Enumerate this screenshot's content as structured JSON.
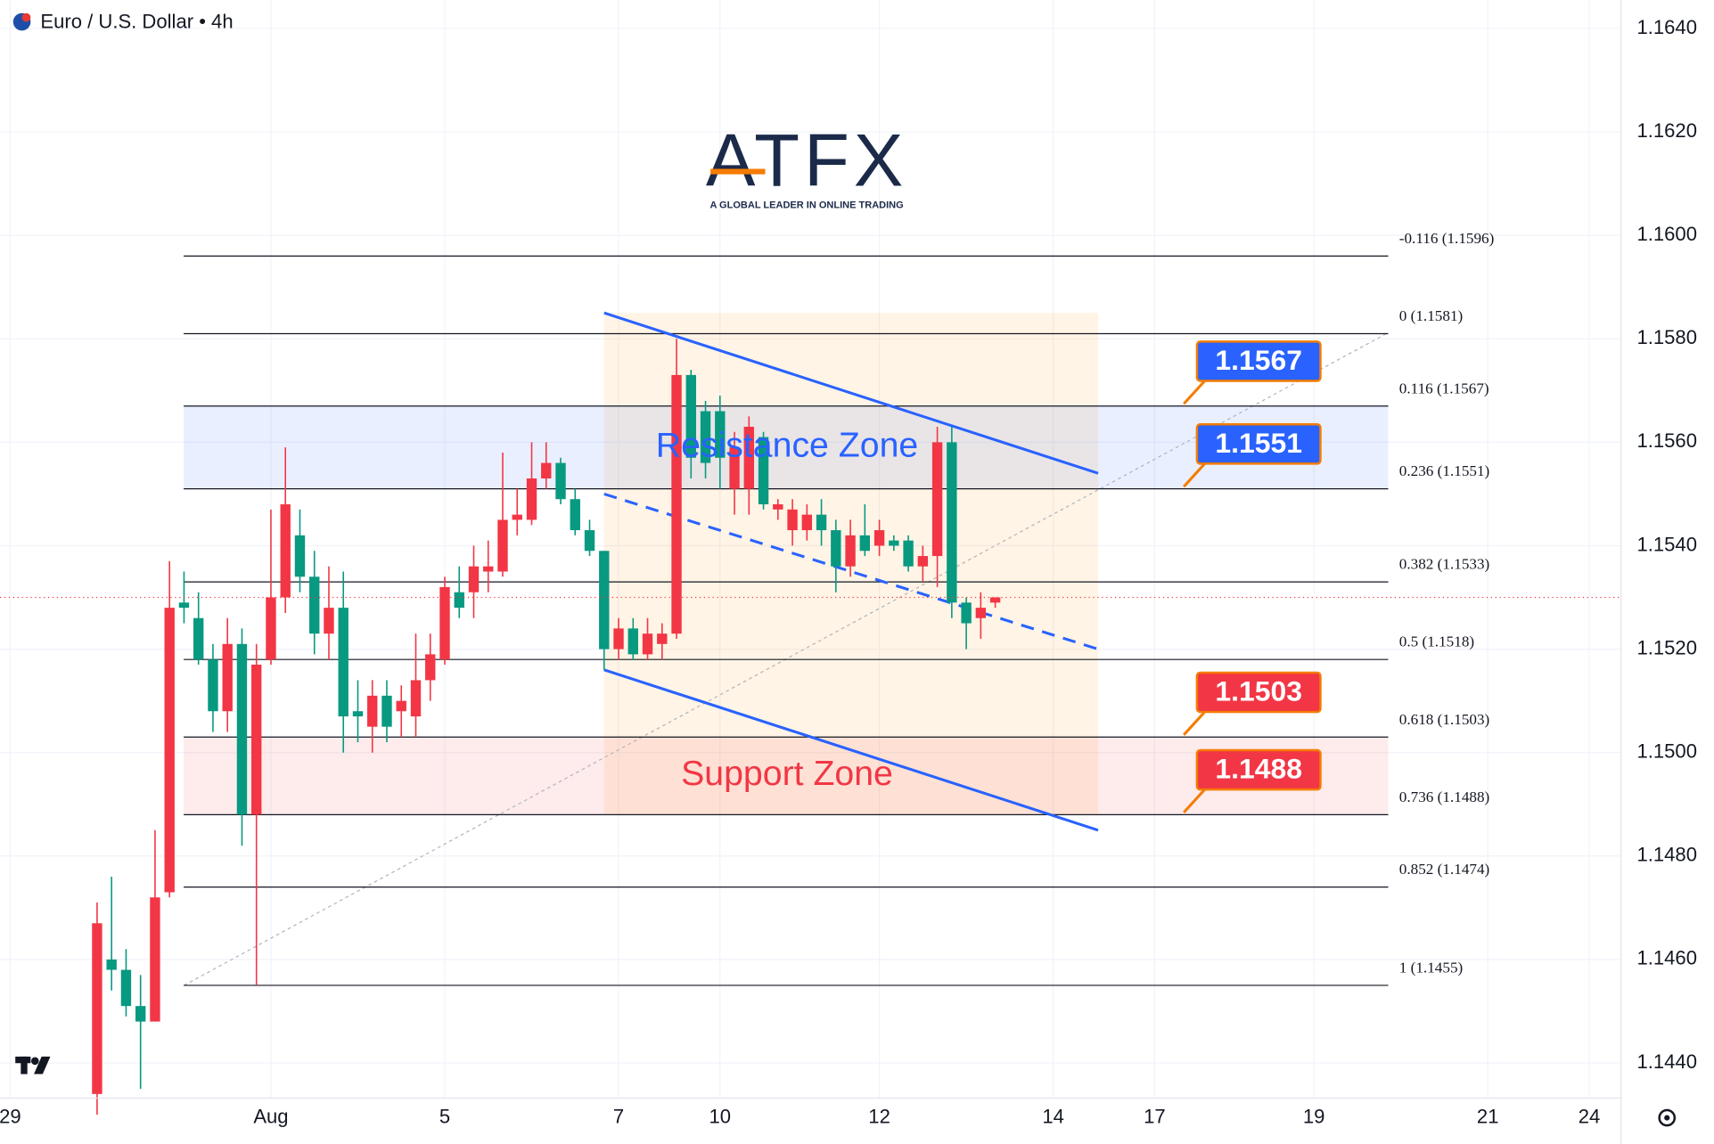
{
  "chart_data": {
    "type": "candlestick",
    "title": "Euro / U.S. Dollar • 4h",
    "logo": {
      "text": "ATFX",
      "tagline": "A GLOBAL LEADER IN ONLINE TRADING"
    },
    "up_color": "#f23645",
    "down_color": "#089981",
    "x": [
      0,
      1,
      2,
      3,
      4,
      5,
      6,
      7,
      8,
      9,
      10,
      11,
      12,
      13,
      14,
      15,
      16,
      17,
      18,
      19,
      20,
      21,
      22,
      23,
      24,
      25,
      26,
      27,
      28,
      29,
      30,
      31,
      32,
      33,
      34,
      35,
      36,
      37,
      38,
      39,
      40,
      41,
      42,
      43,
      44,
      45,
      46,
      47,
      48,
      49,
      50,
      51,
      52,
      53,
      54,
      55,
      56,
      57,
      58,
      59,
      60,
      61,
      62
    ],
    "ohlc": [
      [
        1.1434,
        1.1471,
        1.143,
        1.1467
      ],
      [
        1.146,
        1.1476,
        1.1454,
        1.1458
      ],
      [
        1.1458,
        1.1462,
        1.1449,
        1.1451
      ],
      [
        1.1451,
        1.1457,
        1.1435,
        1.1448
      ],
      [
        1.1448,
        1.1485,
        1.1448,
        1.1472
      ],
      [
        1.1473,
        1.1537,
        1.1472,
        1.1528
      ],
      [
        1.1529,
        1.1535,
        1.1525,
        1.1528
      ],
      [
        1.1526,
        1.1531,
        1.1517,
        1.1518
      ],
      [
        1.1518,
        1.1521,
        1.1504,
        1.1508
      ],
      [
        1.1508,
        1.1526,
        1.1504,
        1.1521
      ],
      [
        1.1521,
        1.1524,
        1.1482,
        1.1488
      ],
      [
        1.1488,
        1.1521,
        1.1455,
        1.1517
      ],
      [
        1.1518,
        1.1547,
        1.1517,
        1.153
      ],
      [
        1.153,
        1.1559,
        1.1527,
        1.1548
      ],
      [
        1.1542,
        1.1547,
        1.1531,
        1.1534
      ],
      [
        1.1534,
        1.1539,
        1.1519,
        1.1523
      ],
      [
        1.1523,
        1.1536,
        1.1518,
        1.1528
      ],
      [
        1.1528,
        1.1535,
        1.15,
        1.1507
      ],
      [
        1.1508,
        1.1514,
        1.1502,
        1.1507
      ],
      [
        1.1505,
        1.1514,
        1.15,
        1.1511
      ],
      [
        1.1511,
        1.1514,
        1.1502,
        1.1505
      ],
      [
        1.1508,
        1.1513,
        1.1503,
        1.151
      ],
      [
        1.1507,
        1.1523,
        1.1503,
        1.1514
      ],
      [
        1.1514,
        1.1523,
        1.151,
        1.1519
      ],
      [
        1.1518,
        1.1534,
        1.1517,
        1.1532
      ],
      [
        1.1531,
        1.1536,
        1.1526,
        1.1528
      ],
      [
        1.1531,
        1.154,
        1.1526,
        1.1536
      ],
      [
        1.1535,
        1.1541,
        1.1531,
        1.1536
      ],
      [
        1.1535,
        1.1558,
        1.1534,
        1.1545
      ],
      [
        1.1545,
        1.1551,
        1.1542,
        1.1546
      ],
      [
        1.1545,
        1.156,
        1.1544,
        1.1553
      ],
      [
        1.1553,
        1.156,
        1.1551,
        1.1556
      ],
      [
        1.1556,
        1.1557,
        1.1548,
        1.1549
      ],
      [
        1.1549,
        1.1551,
        1.1542,
        1.1543
      ],
      [
        1.1543,
        1.1545,
        1.1538,
        1.1539
      ],
      [
        1.1539,
        1.1539,
        1.1516,
        1.152
      ],
      [
        1.152,
        1.1526,
        1.1518,
        1.1524
      ],
      [
        1.1524,
        1.1526,
        1.1518,
        1.1519
      ],
      [
        1.1519,
        1.1526,
        1.1518,
        1.1523
      ],
      [
        1.1521,
        1.1525,
        1.1518,
        1.1523
      ],
      [
        1.1523,
        1.158,
        1.1522,
        1.1573
      ],
      [
        1.1573,
        1.1574,
        1.1553,
        1.1557
      ],
      [
        1.1566,
        1.1568,
        1.1553,
        1.1556
      ],
      [
        1.1566,
        1.1569,
        1.1551,
        1.1557
      ],
      [
        1.1551,
        1.1562,
        1.1546,
        1.1559
      ],
      [
        1.1551,
        1.1565,
        1.1546,
        1.1563
      ],
      [
        1.1561,
        1.1562,
        1.1547,
        1.1548
      ],
      [
        1.1547,
        1.1549,
        1.1545,
        1.1548
      ],
      [
        1.1543,
        1.1549,
        1.154,
        1.1547
      ],
      [
        1.1543,
        1.1548,
        1.1541,
        1.1546
      ],
      [
        1.1546,
        1.1549,
        1.154,
        1.1543
      ],
      [
        1.1543,
        1.1545,
        1.1531,
        1.1536
      ],
      [
        1.1536,
        1.1545,
        1.1534,
        1.1542
      ],
      [
        1.1542,
        1.1548,
        1.1538,
        1.1539
      ],
      [
        1.154,
        1.1545,
        1.1538,
        1.1543
      ],
      [
        1.1541,
        1.1542,
        1.1539,
        1.154
      ],
      [
        1.1541,
        1.1542,
        1.1535,
        1.1536
      ],
      [
        1.1536,
        1.154,
        1.1533,
        1.1538
      ],
      [
        1.1538,
        1.1563,
        1.1532,
        1.156
      ],
      [
        1.156,
        1.1563,
        1.1526,
        1.1529
      ],
      [
        1.1529,
        1.153,
        1.152,
        1.1525
      ],
      [
        1.1526,
        1.1531,
        1.1522,
        1.1528
      ],
      [
        1.1529,
        1.153,
        1.1528,
        1.153
      ]
    ],
    "xlim": [
      -6.7,
      105.2
    ],
    "xticks": [
      {
        "value": -6,
        "label": "29"
      },
      {
        "value": 12,
        "label": "Aug"
      },
      {
        "value": 24,
        "label": "5"
      },
      {
        "value": 36,
        "label": "7"
      },
      {
        "value": 43,
        "label": "10"
      },
      {
        "value": 54,
        "label": "12"
      },
      {
        "value": 66,
        "label": "14"
      },
      {
        "value": 73,
        "label": "17"
      },
      {
        "value": 84,
        "label": "19"
      },
      {
        "value": 96,
        "label": "21"
      },
      {
        "value": 103,
        "label": "24"
      }
    ],
    "ylim": [
      1.14332,
      1.16455
    ],
    "yticks": [
      {
        "value": 1.144,
        "label": "1.1440"
      },
      {
        "value": 1.146,
        "label": "1.1460"
      },
      {
        "value": 1.148,
        "label": "1.1480"
      },
      {
        "value": 1.15,
        "label": "1.1500"
      },
      {
        "value": 1.152,
        "label": "1.1520"
      },
      {
        "value": 1.154,
        "label": "1.1540"
      },
      {
        "value": 1.156,
        "label": "1.1560"
      },
      {
        "value": 1.158,
        "label": "1.1580"
      },
      {
        "value": 1.16,
        "label": "1.1600"
      },
      {
        "value": 1.162,
        "label": "1.1620"
      },
      {
        "value": 1.164,
        "label": "1.1640"
      }
    ],
    "grid": true,
    "last_price": 1.153,
    "fib_levels": [
      {
        "label": "-0.116 (1.1596)",
        "value": 1.1596
      },
      {
        "label": "0 (1.1581)",
        "value": 1.1581
      },
      {
        "label": "0.116 (1.1567)",
        "value": 1.1567
      },
      {
        "label": "0.236 (1.1551)",
        "value": 1.1551
      },
      {
        "label": "0.382 (1.1533)",
        "value": 1.1533
      },
      {
        "label": "0.5 (1.1518)",
        "value": 1.1518
      },
      {
        "label": "0.618 (1.1503)",
        "value": 1.1503
      },
      {
        "label": "0.736 (1.1488)",
        "value": 1.1488
      },
      {
        "label": "0.852 (1.1474)",
        "value": 1.1474
      },
      {
        "label": "1 (1.1455)",
        "value": 1.1455
      }
    ],
    "fib_trend": {
      "x": [
        6,
        89
      ],
      "y": [
        1.1455,
        1.1581
      ]
    },
    "zones": [
      {
        "label": "Resistance Zone",
        "range": [
          1.1551,
          1.1567
        ],
        "color": "#2962ff"
      },
      {
        "label": "Support Zone",
        "range": [
          1.1488,
          1.1503
        ],
        "color": "#f23645"
      }
    ],
    "channel": {
      "x": [
        35,
        69.1
      ],
      "upper": [
        1.1585,
        1.1554
      ],
      "middle": [
        1.155,
        1.152
      ],
      "lower": [
        1.1516,
        1.1485
      ],
      "color": "#2962ff"
    },
    "projection_box": {
      "x": [
        35,
        69.1
      ],
      "y": [
        1.1488,
        1.1585
      ],
      "color": "#ff9800"
    },
    "price_tags": [
      {
        "label": "1.1567",
        "value": 1.1567,
        "color": "#2962ff"
      },
      {
        "label": "1.1551",
        "value": 1.1551,
        "color": "#2962ff"
      },
      {
        "label": "1.1503",
        "value": 1.1503,
        "color": "#f23645"
      },
      {
        "label": "1.1488",
        "value": 1.1488,
        "color": "#f23645"
      }
    ]
  }
}
